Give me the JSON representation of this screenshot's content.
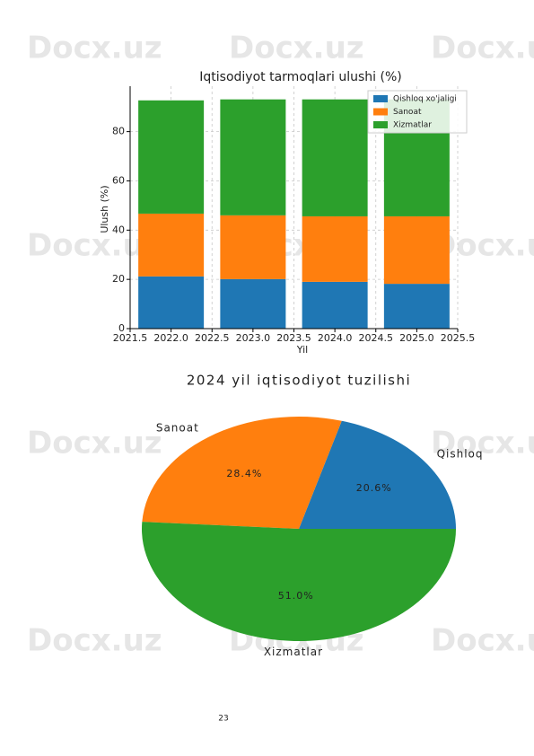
{
  "watermark": "Docx.uz",
  "page_number": "23",
  "chart_data": [
    {
      "type": "stacked_bar",
      "title": "Iqtisodiyot tarmoqlari ulushi (%)",
      "x_label": "Yil",
      "y_label": "Ulush (%)",
      "x": [
        2022,
        2023,
        2024,
        2025
      ],
      "series": [
        {
          "name": "Qishloq xo'jaligi",
          "color": "#1f77b4",
          "values": [
            21.2,
            20.1,
            19.0,
            18.2
          ]
        },
        {
          "name": "Sanoat",
          "color": "#ff7f0e",
          "values": [
            25.5,
            25.9,
            26.6,
            27.4
          ]
        },
        {
          "name": "Xizmatlar",
          "color": "#2ca02c",
          "values": [
            46.0,
            47.1,
            47.5,
            47.5
          ]
        }
      ],
      "xlim": [
        2021.5,
        2025.5
      ],
      "xticks": [
        2021.5,
        {
          "value": 2022,
          "label": "2022.0"
        },
        2022.5,
        {
          "value": 2023,
          "label": "2023.0"
        },
        2023.5,
        {
          "value": 2024,
          "label": "2024.0"
        },
        2024.5,
        {
          "value": 2025,
          "label": "2025.0"
        },
        2025.5
      ],
      "ylim": [
        0,
        97
      ],
      "yticks": [
        0,
        20,
        40,
        60,
        80
      ],
      "grid": true,
      "legend": "upper right"
    },
    {
      "type": "pie",
      "title": "2024 yil iqtisodiyot tuzilishi",
      "categories": [
        "Qishloq",
        "Sanoat",
        "Xizmatlar"
      ],
      "values": [
        20.6,
        28.4,
        51.0
      ],
      "value_labels": [
        "20.6%",
        "28.4%",
        "51.0%"
      ],
      "colors": [
        "#1f77b4",
        "#ff7f0e",
        "#2ca02c"
      ]
    }
  ]
}
